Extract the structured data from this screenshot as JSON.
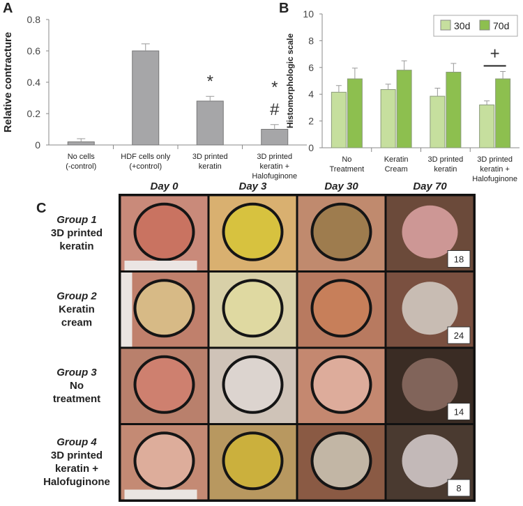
{
  "panels": [
    "A",
    "B",
    "C"
  ],
  "chart_data": [
    {
      "type": "bar",
      "ylabel": "Relative contracture",
      "categories": [
        "No cells\n(-control)",
        "HDF cells only\n(+control)",
        "3D printed\nkeratin",
        "3D printed\nkeratin +\nHalofuginone"
      ],
      "values": [
        0.02,
        0.6,
        0.28,
        0.1
      ],
      "errors": [
        0.02,
        0.045,
        0.03,
        0.03
      ],
      "markers": [
        null,
        null,
        [
          "*"
        ],
        [
          "*",
          "#"
        ]
      ],
      "color": "#a6a6a8",
      "ylim": [
        0,
        0.8
      ],
      "yticks": [
        0,
        0.2,
        0.4,
        0.6,
        0.8
      ]
    },
    {
      "type": "grouped-bar",
      "ylabel": "Histomorphologic scale",
      "categories": [
        "No\nTreatment",
        "Keratin\nCream",
        "3D printed\nkeratin",
        "3D printed\nkeratin +\nHalofuginone"
      ],
      "series": [
        {
          "name": "30d",
          "color": "#c6df9e",
          "values": [
            4.15,
            4.35,
            3.85,
            3.2
          ],
          "errors": [
            0.5,
            0.4,
            0.6,
            0.3
          ]
        },
        {
          "name": "70d",
          "color": "#8dbf4f",
          "values": [
            5.15,
            5.8,
            5.65,
            5.15
          ],
          "errors": [
            0.8,
            0.7,
            0.65,
            0.55
          ]
        }
      ],
      "markers": [
        null,
        null,
        null,
        [
          "+"
        ]
      ],
      "legend": "upper right",
      "ylim": [
        0,
        10
      ],
      "yticks": [
        0,
        2,
        4,
        6,
        8,
        10
      ]
    }
  ],
  "photo_grid": {
    "columns": [
      "Day 0",
      "Day 3",
      "Day 30",
      "Day 70"
    ],
    "rows": [
      {
        "group": "Group 1",
        "label": "3D printed\nkeratin",
        "animal": "18"
      },
      {
        "group": "Group 2",
        "label": "Keratin\ncream",
        "animal": "24"
      },
      {
        "group": "Group 3",
        "label": "No\ntreatment",
        "animal": "14"
      },
      {
        "group": "Group 4",
        "label": "3D printed\nkeratin +\nHalofuginone",
        "animal": "8"
      }
    ]
  }
}
